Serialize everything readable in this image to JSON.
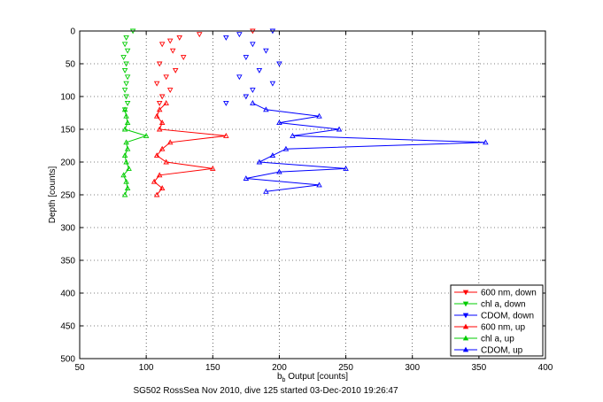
{
  "chart_data": {
    "type": "scatter",
    "footer": "SG502 RossSea Nov 2010, dive 125 started 03-Dec-2010 19:26:47",
    "xlabel_main": "b",
    "xlabel_sub": "b",
    "xlabel_rest": " Output [counts]",
    "ylabel": "Depth [counts]",
    "xlim": [
      50,
      400
    ],
    "ylim": [
      0,
      500
    ],
    "y_reversed": true,
    "grid": true,
    "xticks": [
      50,
      100,
      150,
      200,
      250,
      300,
      350,
      400
    ],
    "yticks": [
      0,
      50,
      100,
      150,
      200,
      250,
      300,
      350,
      400,
      450,
      500
    ],
    "legend_position": "bottom-right",
    "series": [
      {
        "name": "600 nm, down",
        "color": "#ff0000",
        "marker": "triangle-down",
        "depth": [
          0,
          5,
          10,
          15,
          20,
          30,
          40,
          50,
          60,
          70,
          80,
          90,
          100,
          110
        ],
        "x": [
          180,
          140,
          125,
          118,
          112,
          120,
          128,
          110,
          122,
          115,
          108,
          118,
          112,
          110
        ]
      },
      {
        "name": "chl a, down",
        "color": "#00cc00",
        "marker": "triangle-down",
        "depth": [
          0,
          10,
          20,
          30,
          40,
          50,
          60,
          70,
          80,
          90,
          100,
          110,
          120
        ],
        "x": [
          90,
          85,
          84,
          86,
          83,
          85,
          84,
          86,
          85,
          84,
          85,
          86,
          84
        ]
      },
      {
        "name": "CDOM, down",
        "color": "#0000ff",
        "marker": "triangle-down",
        "depth": [
          0,
          5,
          10,
          20,
          30,
          40,
          50,
          60,
          70,
          80,
          90,
          100,
          110
        ],
        "x": [
          195,
          170,
          160,
          180,
          190,
          175,
          200,
          185,
          170,
          195,
          180,
          175,
          160
        ]
      },
      {
        "name": "600 nm, up",
        "color": "#ff0000",
        "marker": "triangle-up",
        "depth": [
          250,
          240,
          230,
          220,
          210,
          200,
          190,
          180,
          170,
          160,
          150,
          140,
          130,
          120,
          110
        ],
        "x": [
          108,
          112,
          106,
          110,
          150,
          115,
          108,
          112,
          118,
          160,
          110,
          112,
          108,
          110,
          115
        ]
      },
      {
        "name": "chl a, up",
        "color": "#00cc00",
        "marker": "triangle-up",
        "depth": [
          250,
          240,
          230,
          220,
          210,
          200,
          190,
          180,
          170,
          160,
          150,
          140,
          130,
          120
        ],
        "x": [
          84,
          86,
          85,
          83,
          87,
          85,
          84,
          86,
          85,
          100,
          84,
          86,
          85,
          84
        ]
      },
      {
        "name": "CDOM, up",
        "color": "#0000ff",
        "marker": "triangle-up",
        "depth": [
          245,
          235,
          225,
          215,
          210,
          200,
          190,
          180,
          170,
          160,
          150,
          140,
          130,
          120,
          110
        ],
        "x": [
          190,
          230,
          175,
          200,
          250,
          185,
          195,
          205,
          355,
          210,
          245,
          200,
          230,
          190,
          180
        ]
      }
    ]
  }
}
